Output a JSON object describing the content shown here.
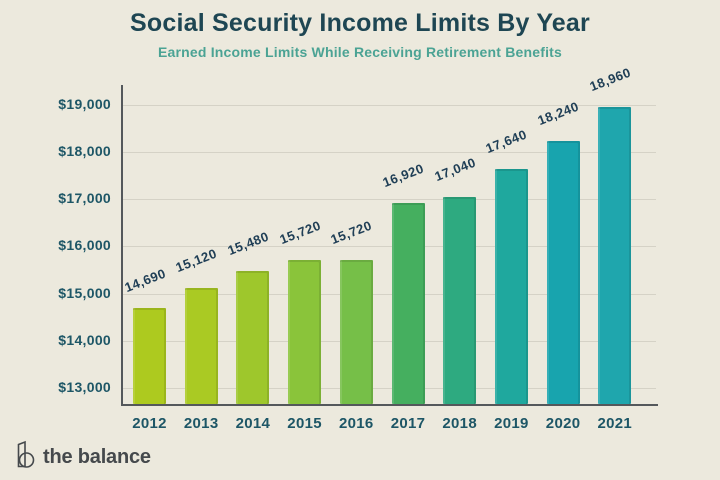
{
  "header": {
    "title": "Social Security Income Limits By Year",
    "subtitle": "Earned Income Limits While Receiving Retirement Benefits"
  },
  "chart_data": {
    "type": "bar",
    "title": "Social Security Income Limits By Year",
    "subtitle": "Earned Income Limits While Receiving Retirement Benefits",
    "categories": [
      "2012",
      "2013",
      "2014",
      "2015",
      "2016",
      "2017",
      "2018",
      "2019",
      "2020",
      "2021"
    ],
    "values": [
      14690,
      15120,
      15480,
      15720,
      15720,
      16920,
      17040,
      17640,
      18240,
      18960
    ],
    "value_labels": [
      "14,690",
      "15,120",
      "15,480",
      "15,720",
      "15,720",
      "16,920",
      "17,040",
      "17,640",
      "18,240",
      "18,960"
    ],
    "bar_colors": [
      "#adca1f",
      "#aaca23",
      "#9ec72c",
      "#8ac43a",
      "#76bf48",
      "#45af5f",
      "#2eaa80",
      "#1fa89e",
      "#18a4ae",
      "#1fa6ad"
    ],
    "y_ticks": [
      {
        "value": 13000,
        "label": "$13,000"
      },
      {
        "value": 14000,
        "label": "$14,000"
      },
      {
        "value": 15000,
        "label": "$15,000"
      },
      {
        "value": 16000,
        "label": "$16,000"
      },
      {
        "value": 17000,
        "label": "$17,000"
      },
      {
        "value": 18000,
        "label": "$18,000"
      },
      {
        "value": 19000,
        "label": "$19,000"
      }
    ],
    "ylim": [
      12660,
      19400
    ],
    "xlabel": "",
    "ylabel": "",
    "grid": true,
    "legend": "none"
  },
  "colors": {
    "background": "#ece9dd",
    "title": "#1e4653",
    "subtitle": "#4ba394",
    "axis": "#54585b",
    "grid": "#d5d2c6",
    "tick_label": "#1d5666",
    "value_label": "#203f56",
    "brand_text": "#45494c"
  },
  "footer": {
    "brand": "the balance"
  }
}
